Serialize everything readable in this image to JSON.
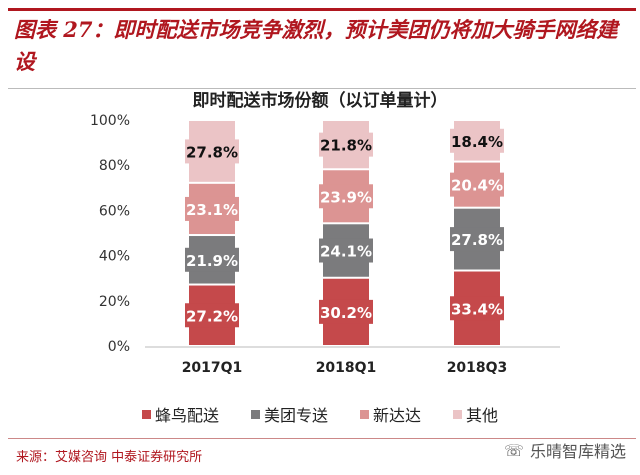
{
  "header": {
    "title": "图表 27：即时配送市场竞争激烈，预计美团仍将加大骑手网络建设"
  },
  "chart_data": {
    "type": "bar",
    "stacked": true,
    "title": "即时配送市场份额（以订单量计）",
    "categories": [
      "2017Q1",
      "2018Q1",
      "2018Q3"
    ],
    "series": [
      {
        "name": "蜂鸟配送",
        "values": [
          27.2,
          30.2,
          33.4
        ],
        "color": "#c5494b",
        "label_color": "#ffffff"
      },
      {
        "name": "美团专送",
        "values": [
          21.9,
          24.1,
          27.8
        ],
        "color": "#7b7b7d",
        "label_color": "#ffffff"
      },
      {
        "name": "新达达",
        "values": [
          23.1,
          23.9,
          20.4
        ],
        "color": "#dc9493",
        "label_color": "#ffffff"
      },
      {
        "name": "其他",
        "values": [
          27.8,
          21.8,
          18.4
        ],
        "color": "#ebc4c6",
        "label_color": "#111111"
      }
    ],
    "ylim": [
      0,
      100
    ],
    "yticks": [
      "0%",
      "20%",
      "40%",
      "60%",
      "80%",
      "100%"
    ],
    "grid": false,
    "legend": "bottom"
  },
  "footer": {
    "source": "来源：艾媒咨询 中泰证券研究所",
    "watermark": "乐晴智库精选"
  }
}
